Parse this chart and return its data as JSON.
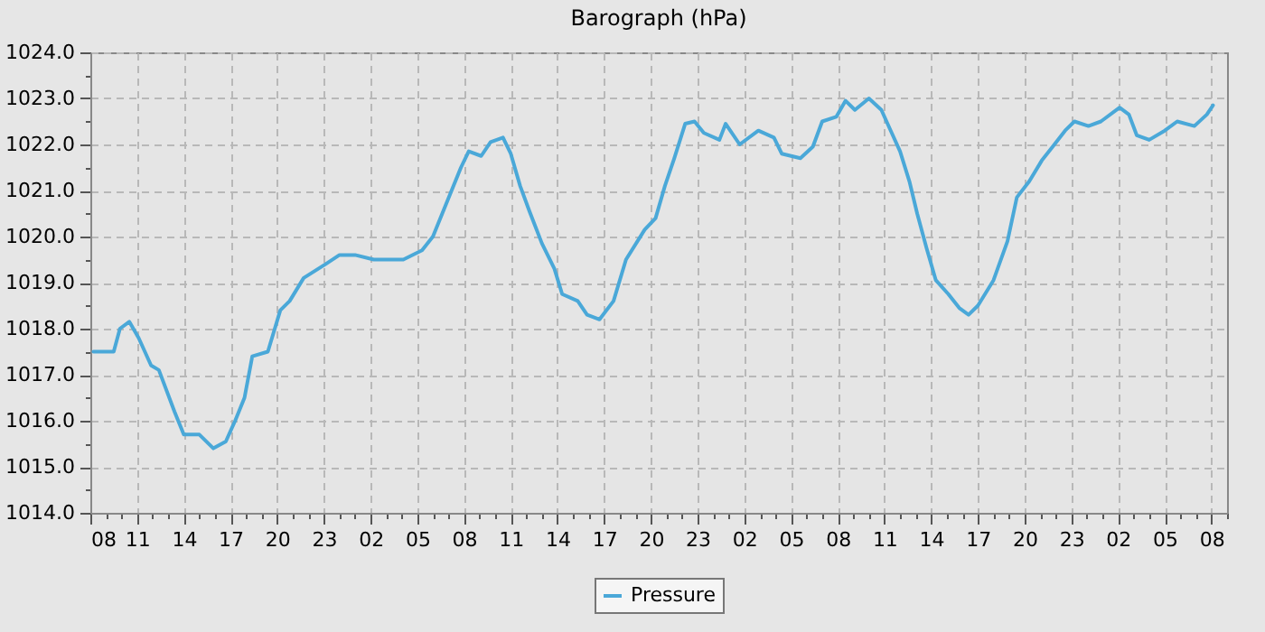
{
  "chart_data": {
    "type": "line",
    "title": "Barograph (hPa)",
    "x": [
      "--01-01T08:12",
      "--01-01T09:30",
      "--01-01T09:54",
      "--01-01T10:30",
      "--01-01T11:06",
      "--01-01T11:54",
      "--01-01T12:24",
      "--01-01T13:24",
      "--01-01T14:00",
      "--01-01T15:00",
      "--01-01T15:54",
      "--01-01T16:42",
      "--01-01T17:18",
      "--01-01T17:54",
      "--01-01T18:24",
      "--01-01T19:24",
      "--01-01T20:12",
      "--01-01T20:48",
      "--01-01T21:42",
      "--01-01T23:06",
      "--01-02T00:00",
      "--01-02T01:00",
      "--01-02T02:12",
      "--01-02T04:06",
      "--01-02T05:18",
      "--01-02T06:00",
      "--01-02T06:36",
      "--01-02T07:12",
      "--01-02T07:48",
      "--01-02T08:18",
      "--01-02T09:06",
      "--01-02T09:42",
      "--01-02T10:30",
      "--01-02T11:00",
      "--01-02T11:36",
      "--01-02T12:12",
      "--01-02T13:00",
      "--01-02T13:48",
      "--01-02T14:18",
      "--01-02T15:18",
      "--01-02T15:54",
      "--01-02T16:42",
      "--01-02T17:36",
      "--01-02T18:24",
      "--01-02T19:36",
      "--01-02T20:18",
      "--01-02T20:54",
      "--01-02T21:30",
      "--01-02T22:12",
      "--01-02T22:48",
      "--01-02T23:24",
      "--01-03T00:24",
      "--01-03T00:48",
      "--01-03T01:42",
      "--01-03T02:54",
      "--01-03T03:54",
      "--01-03T04:24",
      "--01-03T05:36",
      "--01-03T06:24",
      "--01-03T07:00",
      "--01-03T07:54",
      "--01-03T08:30",
      "--01-03T09:06",
      "--01-03T10:00",
      "--01-03T10:48",
      "--01-03T11:24",
      "--01-03T12:00",
      "--01-03T12:36",
      "--01-03T13:06",
      "--01-03T13:42",
      "--01-03T14:18",
      "--01-03T15:06",
      "--01-03T15:48",
      "--01-03T16:24",
      "--01-03T17:00",
      "--01-03T18:00",
      "--01-03T18:54",
      "--01-03T19:30",
      "--01-03T20:18",
      "--01-03T21:06",
      "--01-03T21:48",
      "--01-03T22:36",
      "--01-03T23:12",
      "--01-04T00:06",
      "--01-04T00:54",
      "--01-04T02:06",
      "--01-04T02:42",
      "--01-04T03:12",
      "--01-04T04:00",
      "--01-04T05:00",
      "--01-04T05:48",
      "--01-04T06:54",
      "--01-04T07:42",
      "--01-04T08:06"
    ],
    "series": [
      {
        "name": "Pressure",
        "color": "#4aa8d8",
        "values": [
          1017.5,
          1017.5,
          1018.0,
          1018.15,
          1017.8,
          1017.2,
          1017.1,
          1016.2,
          1015.7,
          1015.7,
          1015.4,
          1015.55,
          1016.0,
          1016.5,
          1017.4,
          1017.5,
          1018.4,
          1018.6,
          1019.1,
          1019.4,
          1019.6,
          1019.6,
          1019.5,
          1019.5,
          1019.7,
          1020.0,
          1020.5,
          1021.0,
          1021.5,
          1021.85,
          1021.75,
          1022.05,
          1022.15,
          1021.8,
          1021.1,
          1020.55,
          1019.85,
          1019.3,
          1018.75,
          1018.6,
          1018.3,
          1018.2,
          1018.6,
          1019.5,
          1020.15,
          1020.4,
          1021.1,
          1021.7,
          1022.45,
          1022.5,
          1022.25,
          1022.1,
          1022.45,
          1022.0,
          1022.3,
          1022.15,
          1021.8,
          1021.7,
          1021.95,
          1022.5,
          1022.6,
          1022.95,
          1022.75,
          1023.0,
          1022.75,
          1022.3,
          1021.85,
          1021.2,
          1020.5,
          1019.75,
          1019.05,
          1018.75,
          1018.45,
          1018.3,
          1018.5,
          1019.05,
          1019.9,
          1020.85,
          1021.2,
          1021.65,
          1021.95,
          1022.3,
          1022.5,
          1022.4,
          1022.5,
          1022.8,
          1022.65,
          1022.2,
          1022.1,
          1022.3,
          1022.5,
          1022.4,
          1022.65,
          1022.85
        ]
      }
    ],
    "xlim": [
      "--01-01T08:00",
      "--01-04T09:00"
    ],
    "xticks": [
      {
        "value": "--01-01T08:00",
        "label": "08"
      },
      {
        "value": "--01-01T09:00",
        "label": null
      },
      {
        "value": "--01-01T10:00",
        "label": null
      },
      {
        "value": "--01-01T11:00",
        "label": "11"
      },
      {
        "value": "--01-01T12:00",
        "label": null
      },
      {
        "value": "--01-01T13:00",
        "label": null
      },
      {
        "value": "--01-01T14:00",
        "label": "14"
      },
      {
        "value": "--01-01T15:00",
        "label": null
      },
      {
        "value": "--01-01T16:00",
        "label": null
      },
      {
        "value": "--01-01T17:00",
        "label": "17"
      },
      {
        "value": "--01-01T18:00",
        "label": null
      },
      {
        "value": "--01-01T19:00",
        "label": null
      },
      {
        "value": "--01-01T20:00",
        "label": "20"
      },
      {
        "value": "--01-01T21:00",
        "label": null
      },
      {
        "value": "--01-01T22:00",
        "label": null
      },
      {
        "value": "--01-01T23:00",
        "label": "23"
      },
      {
        "value": "--01-02T00:00",
        "label": null
      },
      {
        "value": "--01-02T01:00",
        "label": null
      },
      {
        "value": "--01-02T02:00",
        "label": "02"
      },
      {
        "value": "--01-02T03:00",
        "label": null
      },
      {
        "value": "--01-02T04:00",
        "label": null
      },
      {
        "value": "--01-02T05:00",
        "label": "05"
      },
      {
        "value": "--01-02T06:00",
        "label": null
      },
      {
        "value": "--01-02T07:00",
        "label": null
      },
      {
        "value": "--01-02T08:00",
        "label": "08"
      },
      {
        "value": "--01-02T09:00",
        "label": null
      },
      {
        "value": "--01-02T10:00",
        "label": null
      },
      {
        "value": "--01-02T11:00",
        "label": "11"
      },
      {
        "value": "--01-02T12:00",
        "label": null
      },
      {
        "value": "--01-02T13:00",
        "label": null
      },
      {
        "value": "--01-02T14:00",
        "label": "14"
      },
      {
        "value": "--01-02T15:00",
        "label": null
      },
      {
        "value": "--01-02T16:00",
        "label": null
      },
      {
        "value": "--01-02T17:00",
        "label": "17"
      },
      {
        "value": "--01-02T18:00",
        "label": null
      },
      {
        "value": "--01-02T19:00",
        "label": null
      },
      {
        "value": "--01-02T20:00",
        "label": "20"
      },
      {
        "value": "--01-02T21:00",
        "label": null
      },
      {
        "value": "--01-02T22:00",
        "label": null
      },
      {
        "value": "--01-02T23:00",
        "label": "23"
      },
      {
        "value": "--01-03T00:00",
        "label": null
      },
      {
        "value": "--01-03T01:00",
        "label": null
      },
      {
        "value": "--01-03T02:00",
        "label": "02"
      },
      {
        "value": "--01-03T03:00",
        "label": null
      },
      {
        "value": "--01-03T04:00",
        "label": null
      },
      {
        "value": "--01-03T05:00",
        "label": "05"
      },
      {
        "value": "--01-03T06:00",
        "label": null
      },
      {
        "value": "--01-03T07:00",
        "label": null
      },
      {
        "value": "--01-03T08:00",
        "label": "08"
      },
      {
        "value": "--01-03T09:00",
        "label": null
      },
      {
        "value": "--01-03T10:00",
        "label": null
      },
      {
        "value": "--01-03T11:00",
        "label": "11"
      },
      {
        "value": "--01-03T12:00",
        "label": null
      },
      {
        "value": "--01-03T13:00",
        "label": null
      },
      {
        "value": "--01-03T14:00",
        "label": "14"
      },
      {
        "value": "--01-03T15:00",
        "label": null
      },
      {
        "value": "--01-03T16:00",
        "label": null
      },
      {
        "value": "--01-03T17:00",
        "label": "17"
      },
      {
        "value": "--01-03T18:00",
        "label": null
      },
      {
        "value": "--01-03T19:00",
        "label": null
      },
      {
        "value": "--01-03T20:00",
        "label": "20"
      },
      {
        "value": "--01-03T21:00",
        "label": null
      },
      {
        "value": "--01-03T22:00",
        "label": null
      },
      {
        "value": "--01-03T23:00",
        "label": "23"
      },
      {
        "value": "--01-04T00:00",
        "label": null
      },
      {
        "value": "--01-04T01:00",
        "label": null
      },
      {
        "value": "--01-04T02:00",
        "label": "02"
      },
      {
        "value": "--01-04T03:00",
        "label": null
      },
      {
        "value": "--01-04T04:00",
        "label": null
      },
      {
        "value": "--01-04T05:00",
        "label": "05"
      },
      {
        "value": "--01-04T06:00",
        "label": null
      },
      {
        "value": "--01-04T07:00",
        "label": null
      },
      {
        "value": "--01-04T08:00",
        "label": "08"
      },
      {
        "value": "--01-04T09:00",
        "label": null
      }
    ],
    "ylim": [
      1014,
      1024
    ],
    "yticks": [
      {
        "value": 1014,
        "label": "1014.0"
      },
      {
        "value": 1014.5,
        "label": null
      },
      {
        "value": 1015,
        "label": "1015.0"
      },
      {
        "value": 1015.5,
        "label": null
      },
      {
        "value": 1016,
        "label": "1016.0"
      },
      {
        "value": 1016.5,
        "label": null
      },
      {
        "value": 1017,
        "label": "1017.0"
      },
      {
        "value": 1017.5,
        "label": null
      },
      {
        "value": 1018,
        "label": "1018.0"
      },
      {
        "value": 1018.5,
        "label": null
      },
      {
        "value": 1019,
        "label": "1019.0"
      },
      {
        "value": 1019.5,
        "label": null
      },
      {
        "value": 1020,
        "label": "1020.0"
      },
      {
        "value": 1020.5,
        "label": null
      },
      {
        "value": 1021,
        "label": "1021.0"
      },
      {
        "value": 1021.5,
        "label": null
      },
      {
        "value": 1022,
        "label": "1022.0"
      },
      {
        "value": 1022.5,
        "label": null
      },
      {
        "value": 1023,
        "label": "1023.0"
      },
      {
        "value": 1023.5,
        "label": null
      },
      {
        "value": 1024,
        "label": "1024.0"
      }
    ],
    "grid": true,
    "legend": "bottom",
    "line_style": "solid",
    "marker": "none"
  }
}
